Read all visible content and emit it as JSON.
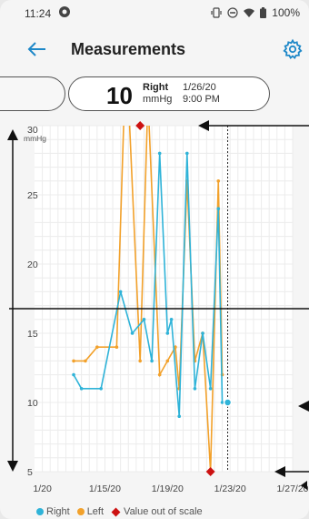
{
  "status_bar": {
    "time": "11:24",
    "battery": "100%"
  },
  "app_bar": {
    "title": "Measurements"
  },
  "reading": {
    "value": "10",
    "side": "Right",
    "unit": "mmHg",
    "date": "1/26/20",
    "time": "9:00 PM"
  },
  "colors": {
    "right": "#2fb3d8",
    "left": "#f2a12b",
    "out_of_scale": "#cc1111",
    "annotation": "#111111"
  },
  "legend": [
    {
      "label": "Right",
      "shape": "dot",
      "color": "#2fb3d8"
    },
    {
      "label": "Left",
      "shape": "dot",
      "color": "#f2a12b"
    },
    {
      "label": "Value out of scale",
      "shape": "diamond",
      "color": "#cc1111"
    }
  ],
  "chart_data": {
    "type": "line",
    "ylabel": "mmHg",
    "ylim": [
      5,
      30
    ],
    "yticks": [
      5,
      10,
      15,
      20,
      25,
      30
    ],
    "xlim": [
      -2.5,
      14
    ],
    "xticks": [
      {
        "x": -2,
        "label": "1/20"
      },
      {
        "x": 2,
        "label": "1/15/20"
      },
      {
        "x": 6,
        "label": "1/19/20"
      },
      {
        "x": 10,
        "label": "1/23/20"
      },
      {
        "x": 14,
        "label": "1/27/20"
      }
    ],
    "series": [
      {
        "name": "Right",
        "points": [
          [
            0,
            12
          ],
          [
            0.5,
            11
          ],
          [
            1.75,
            11
          ],
          [
            3,
            18
          ],
          [
            3.75,
            15
          ],
          [
            4.5,
            16
          ],
          [
            5,
            13
          ],
          [
            5.5,
            28
          ],
          [
            6,
            15
          ],
          [
            6.25,
            16
          ],
          [
            6.75,
            9
          ],
          [
            7.25,
            28
          ],
          [
            7.75,
            11
          ],
          [
            8.25,
            15
          ],
          [
            8.75,
            11
          ],
          [
            9.25,
            24
          ],
          [
            9.5,
            10
          ]
        ]
      },
      {
        "name": "Left",
        "points": [
          [
            0,
            13
          ],
          [
            0.75,
            13
          ],
          [
            1.5,
            14
          ],
          [
            2.75,
            14
          ],
          [
            3.25,
            32
          ],
          [
            3.5,
            32
          ],
          [
            4.25,
            13
          ],
          [
            4.75,
            32
          ],
          [
            5.5,
            12
          ],
          [
            6,
            13
          ],
          [
            6.5,
            14
          ],
          [
            6.75,
            11
          ],
          [
            7.25,
            26
          ],
          [
            7.75,
            13
          ],
          [
            8.25,
            15
          ],
          [
            8.75,
            5
          ],
          [
            9.25,
            26
          ],
          [
            9.5,
            12
          ]
        ]
      }
    ],
    "out_of_scale": [
      [
        4.25,
        30
      ],
      [
        8.75,
        5
      ]
    ],
    "selected_x": 9.5
  }
}
